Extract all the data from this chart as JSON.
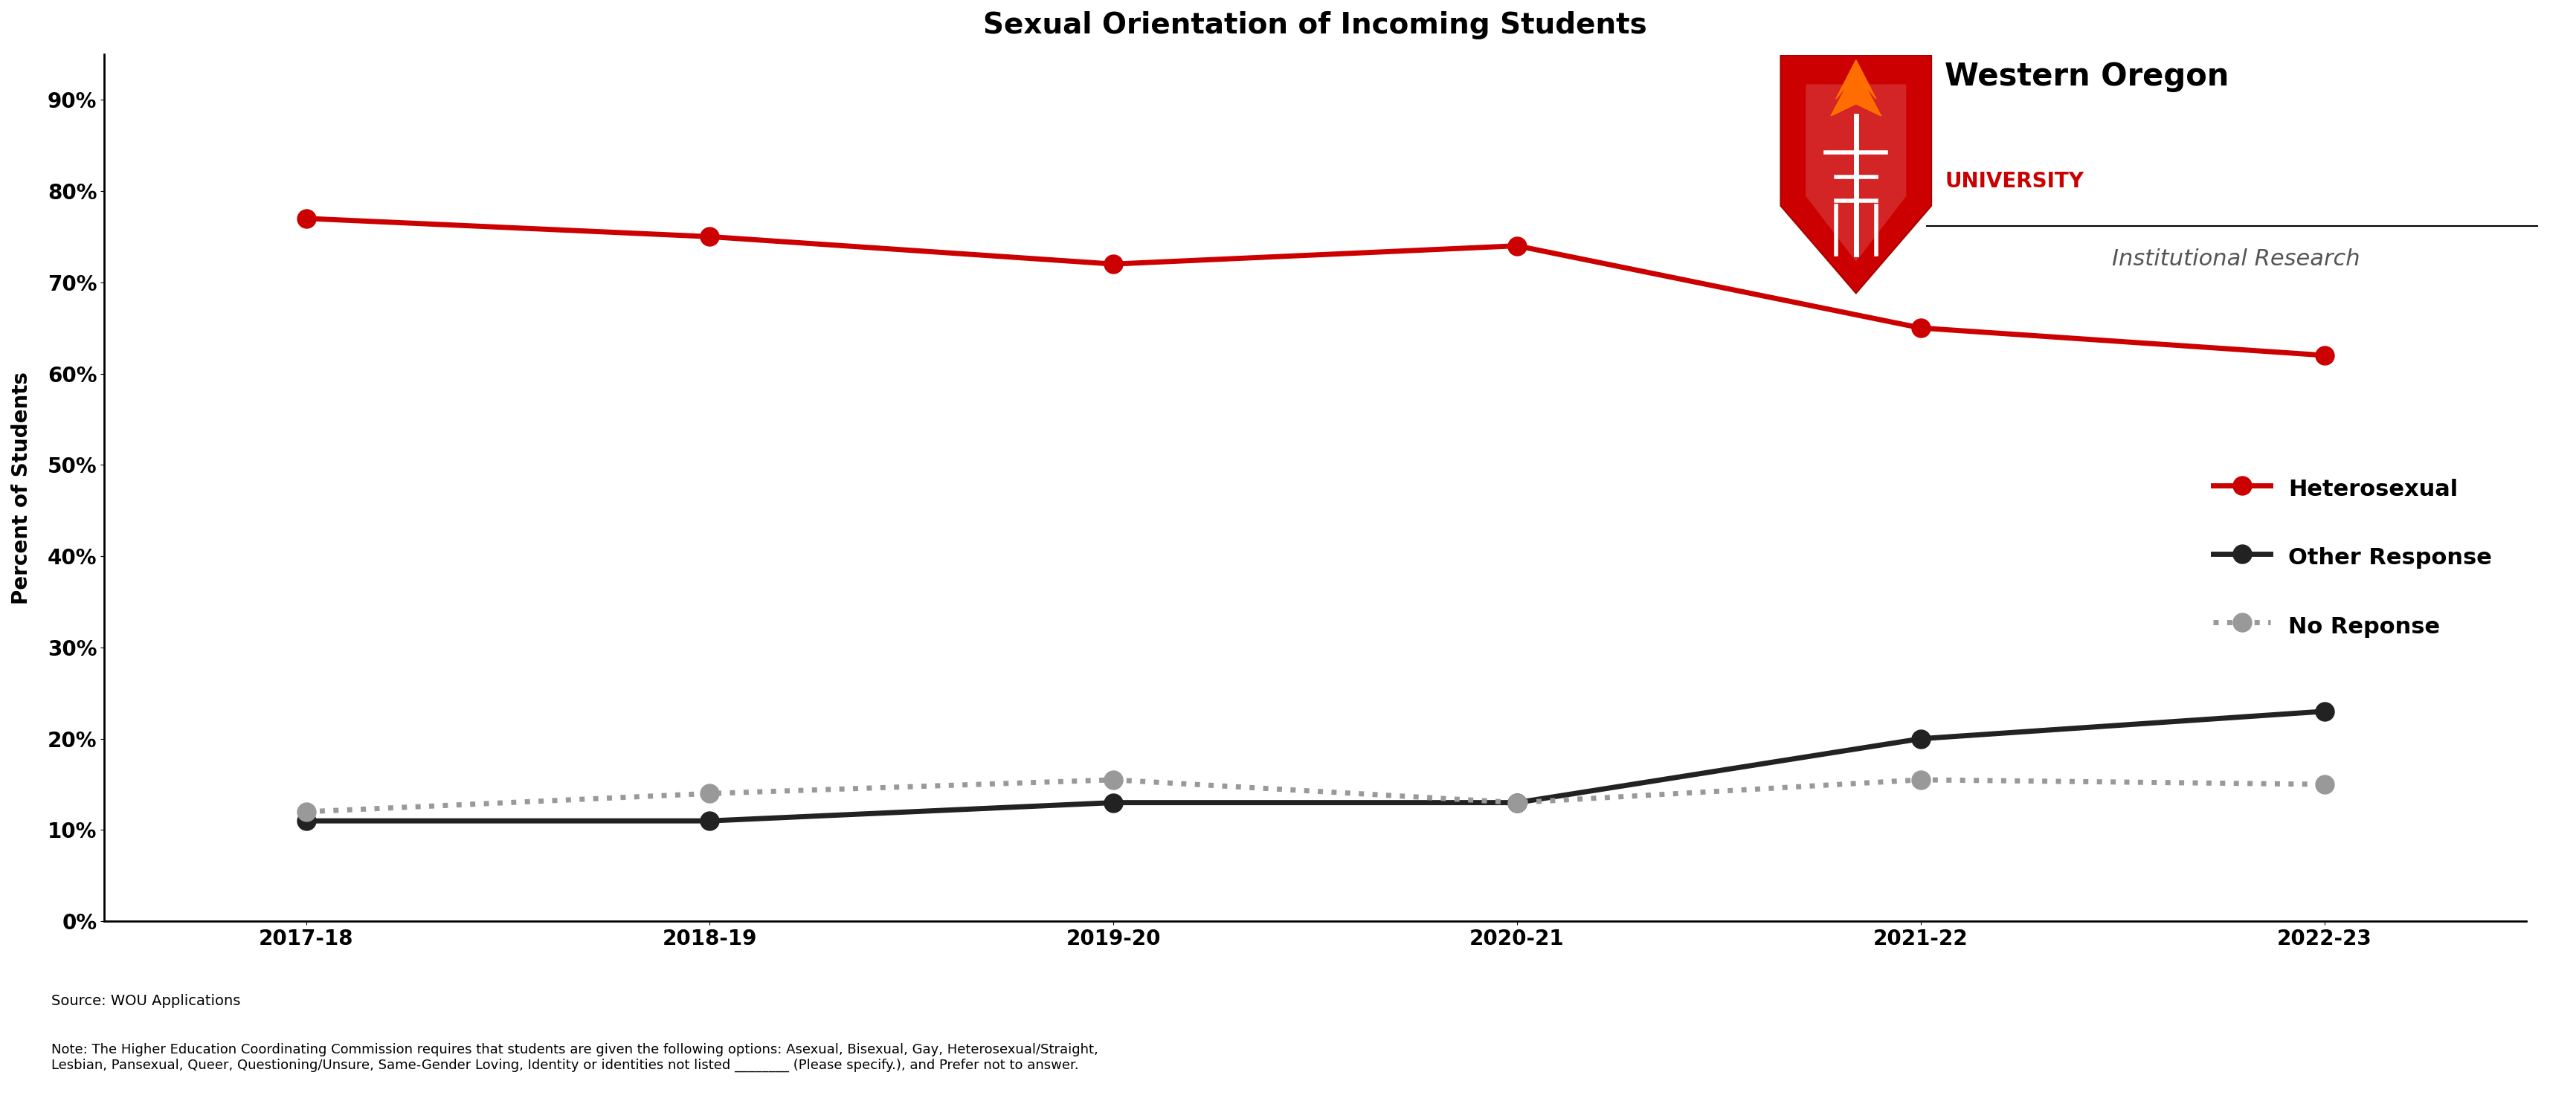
{
  "title": "Sexual Orientation of Incoming Students",
  "ylabel": "Percent of Students",
  "years": [
    "2017-18",
    "2018-19",
    "2019-20",
    "2020-21",
    "2021-22",
    "2022-23"
  ],
  "heterosexual": [
    0.77,
    0.75,
    0.72,
    0.74,
    0.65,
    0.62
  ],
  "other_response": [
    0.11,
    0.11,
    0.13,
    0.13,
    0.2,
    0.23
  ],
  "no_response": [
    0.12,
    0.14,
    0.155,
    0.13,
    0.155,
    0.15
  ],
  "hetero_color": "#CC0000",
  "other_color": "#222222",
  "no_resp_color": "#999999",
  "bg_color": "#ffffff",
  "title_fontsize": 28,
  "label_fontsize": 20,
  "tick_fontsize": 20,
  "legend_fontsize": 22,
  "source_text": "Source: WOU Applications",
  "note_text": "Note: The Higher Education Coordinating Commission requires that students are given the following options: Asexual, Bisexual, Gay, Heterosexual/Straight,\nLesbian, Pansexual, Queer, Questioning/Unsure, Same-Gender Loving, Identity or identities not listed ________ (Please specify.), and Prefer not to answer.",
  "wou_text1": "Western Oregon",
  "wou_text2": "UNIVERSITY",
  "wou_text3": "Institutional Research",
  "ylim": [
    0,
    0.95
  ],
  "yticks": [
    0,
    0.1,
    0.2,
    0.3,
    0.4,
    0.5,
    0.6,
    0.7,
    0.8,
    0.9
  ],
  "ytick_labels": [
    "0%",
    "10%",
    "20%",
    "30%",
    "40%",
    "50%",
    "60%",
    "70%",
    "80%",
    "90%"
  ]
}
